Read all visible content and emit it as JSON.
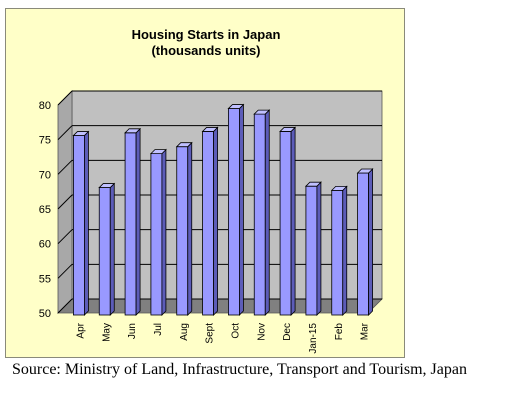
{
  "chart_data": {
    "type": "bar",
    "title": "Housing Starts in Japan",
    "subtitle": "(thousands units)",
    "categories": [
      "Apr",
      "May",
      "Jun",
      "Jul",
      "Aug",
      "Sept",
      "Oct",
      "Nov",
      "Dec",
      "Jan-15",
      "Feb",
      "Mar"
    ],
    "values": [
      75.3,
      67.8,
      75.7,
      72.7,
      73.7,
      75.9,
      79.2,
      78.4,
      75.9,
      68.0,
      67.4,
      69.9
    ],
    "ylim": [
      50,
      80
    ],
    "yticks": [
      "50",
      "55",
      "60",
      "65",
      "70",
      "75",
      "80"
    ],
    "xlabel": "",
    "ylabel": "",
    "grid": true,
    "colors": {
      "bar": "#9999ff",
      "bar_top": "#c0c0ff",
      "bar_side": "#5c5cb8",
      "wall": "#c0c0c0",
      "floor": "#808080"
    }
  },
  "source": "Source: Ministry of Land, Infrastructure, Transport and Tourism, Japan"
}
